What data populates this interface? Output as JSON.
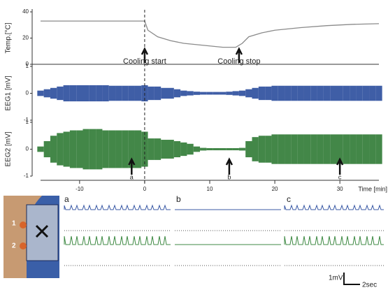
{
  "chart_data": [
    {
      "type": "line",
      "ylabel": "Temp.[°C]",
      "color": "#8a8a8a",
      "x": [
        -16,
        0,
        0.5,
        2,
        4,
        6,
        8,
        10,
        12,
        14,
        15,
        16,
        18,
        20,
        24,
        28,
        32,
        36
      ],
      "values": [
        33,
        33,
        26,
        21,
        18,
        16,
        15,
        14,
        13,
        13,
        16,
        21,
        24,
        26,
        28,
        29.5,
        30.5,
        31
      ],
      "xlim": [
        -16,
        36
      ],
      "ylim": [
        0,
        40
      ],
      "yticks": [
        0,
        20,
        40
      ],
      "annotations": [
        {
          "text": "Cooling start",
          "x": 0
        },
        {
          "text": "Cooling stop",
          "x": 14.5
        }
      ]
    },
    {
      "type": "area",
      "ylabel": "EEG1 [mV]",
      "color": "#2a4c9c",
      "x": [
        -16,
        -15,
        -14,
        -13,
        -12,
        -11,
        -10,
        -9,
        -8,
        -7,
        -6,
        -5,
        -4,
        -3,
        -2,
        -1,
        0,
        1,
        2,
        3,
        4,
        5,
        6,
        7,
        8,
        9,
        10,
        11,
        12,
        13,
        14,
        15,
        16,
        17,
        18,
        19,
        20,
        21,
        22,
        23,
        24,
        25,
        26,
        27,
        28,
        29,
        30,
        31,
        32,
        33,
        34,
        35,
        36
      ],
      "values": [
        0.1,
        0.15,
        0.2,
        0.25,
        0.3,
        0.3,
        0.3,
        0.3,
        0.3,
        0.3,
        0.3,
        0.28,
        0.28,
        0.28,
        0.28,
        0.28,
        0.3,
        0.25,
        0.25,
        0.2,
        0.2,
        0.15,
        0.1,
        0.08,
        0.06,
        0.05,
        0.05,
        0.05,
        0.05,
        0.06,
        0.08,
        0.1,
        0.15,
        0.2,
        0.25,
        0.25,
        0.28,
        0.28,
        0.28,
        0.28,
        0.28,
        0.28,
        0.28,
        0.28,
        0.28,
        0.28,
        0.28,
        0.28,
        0.28,
        0.28,
        0.28,
        0.28,
        0.28
      ],
      "xlim": [
        -16,
        36
      ],
      "ylim": [
        -1,
        1
      ],
      "yticks": [
        -1,
        0,
        1
      ]
    },
    {
      "type": "area",
      "ylabel": "EEG2 [mV]",
      "xlabel": "Time [min]",
      "color": "#2f7a34",
      "x": [
        -16,
        -15,
        -14,
        -13,
        -12,
        -11,
        -10,
        -9,
        -8,
        -7,
        -6,
        -5,
        -4,
        -3,
        -2,
        -1,
        0,
        1,
        2,
        3,
        4,
        5,
        6,
        7,
        8,
        9,
        10,
        11,
        12,
        13,
        14,
        15,
        16,
        17,
        18,
        19,
        20,
        21,
        22,
        23,
        24,
        25,
        26,
        27,
        28,
        29,
        30,
        31,
        32,
        33,
        34,
        35,
        36
      ],
      "values": [
        0.1,
        0.3,
        0.5,
        0.6,
        0.65,
        0.7,
        0.7,
        0.75,
        0.75,
        0.75,
        0.7,
        0.7,
        0.7,
        0.7,
        0.7,
        0.7,
        0.65,
        0.4,
        0.4,
        0.35,
        0.35,
        0.3,
        0.25,
        0.2,
        0.1,
        0.05,
        0.04,
        0.04,
        0.04,
        0.04,
        0.04,
        0.05,
        0.3,
        0.45,
        0.5,
        0.5,
        0.55,
        0.55,
        0.55,
        0.55,
        0.55,
        0.55,
        0.55,
        0.55,
        0.55,
        0.55,
        0.55,
        0.55,
        0.55,
        0.55,
        0.55,
        0.55,
        0.55
      ],
      "xlim": [
        -16,
        36
      ],
      "ylim": [
        -1,
        1
      ],
      "yticks": [
        -1,
        0,
        1
      ],
      "xticks": [
        -10,
        0,
        10,
        20,
        30
      ],
      "annotations": [
        {
          "text": "a",
          "x": -2
        },
        {
          "text": "b",
          "x": 13
        },
        {
          "text": "c",
          "x": 30
        }
      ]
    }
  ],
  "image_labels": [
    "1",
    "2"
  ],
  "panels": [
    "a",
    "b",
    "c"
  ],
  "scale_bar": {
    "voltage": "1mV",
    "time": "2sec"
  }
}
